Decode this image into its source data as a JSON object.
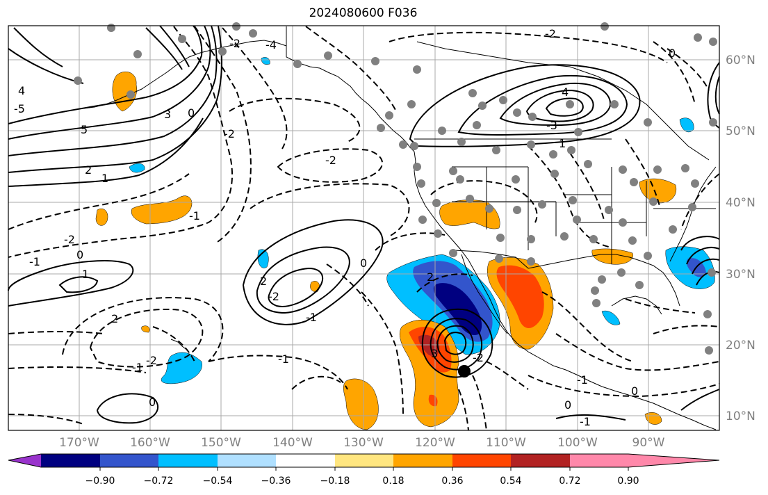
{
  "title": "2024080600 F036",
  "map": {
    "lon_ticks": [
      "170°W",
      "160°W",
      "150°W",
      "140°W",
      "130°W",
      "120°W",
      "110°W",
      "100°W",
      "90°W"
    ],
    "lat_ticks": [
      "60°N",
      "50°N",
      "40°N",
      "30°N",
      "20°N",
      "10°N"
    ],
    "grid": true
  },
  "colorbar": {
    "colors": [
      "#9933cc",
      "#000080",
      "#3355cc",
      "#00bfff",
      "#b0e0ff",
      "#ffffff",
      "#ffe680",
      "#ffa500",
      "#ff4500",
      "#b22222",
      "#ff88aa"
    ],
    "tick_labels": [
      "−0.90",
      "−0.72",
      "−0.54",
      "−0.36",
      "−0.18",
      "0.18",
      "0.36",
      "0.54",
      "0.72",
      "0.90"
    ],
    "extend": "both"
  },
  "contour_labels": [
    "-2",
    "-4",
    "-5",
    "4",
    "5",
    "3",
    "0",
    "-2",
    "2",
    "1",
    "-1",
    "0",
    "-1",
    "1",
    "-2",
    "2",
    "-2",
    "-1",
    "0",
    "-2",
    "2",
    "-2",
    "4",
    "-3",
    "0",
    "1",
    "-1",
    "-2",
    "-1",
    "0",
    "-1",
    "0",
    "-1",
    "0",
    "2",
    "-2",
    "3"
  ]
}
